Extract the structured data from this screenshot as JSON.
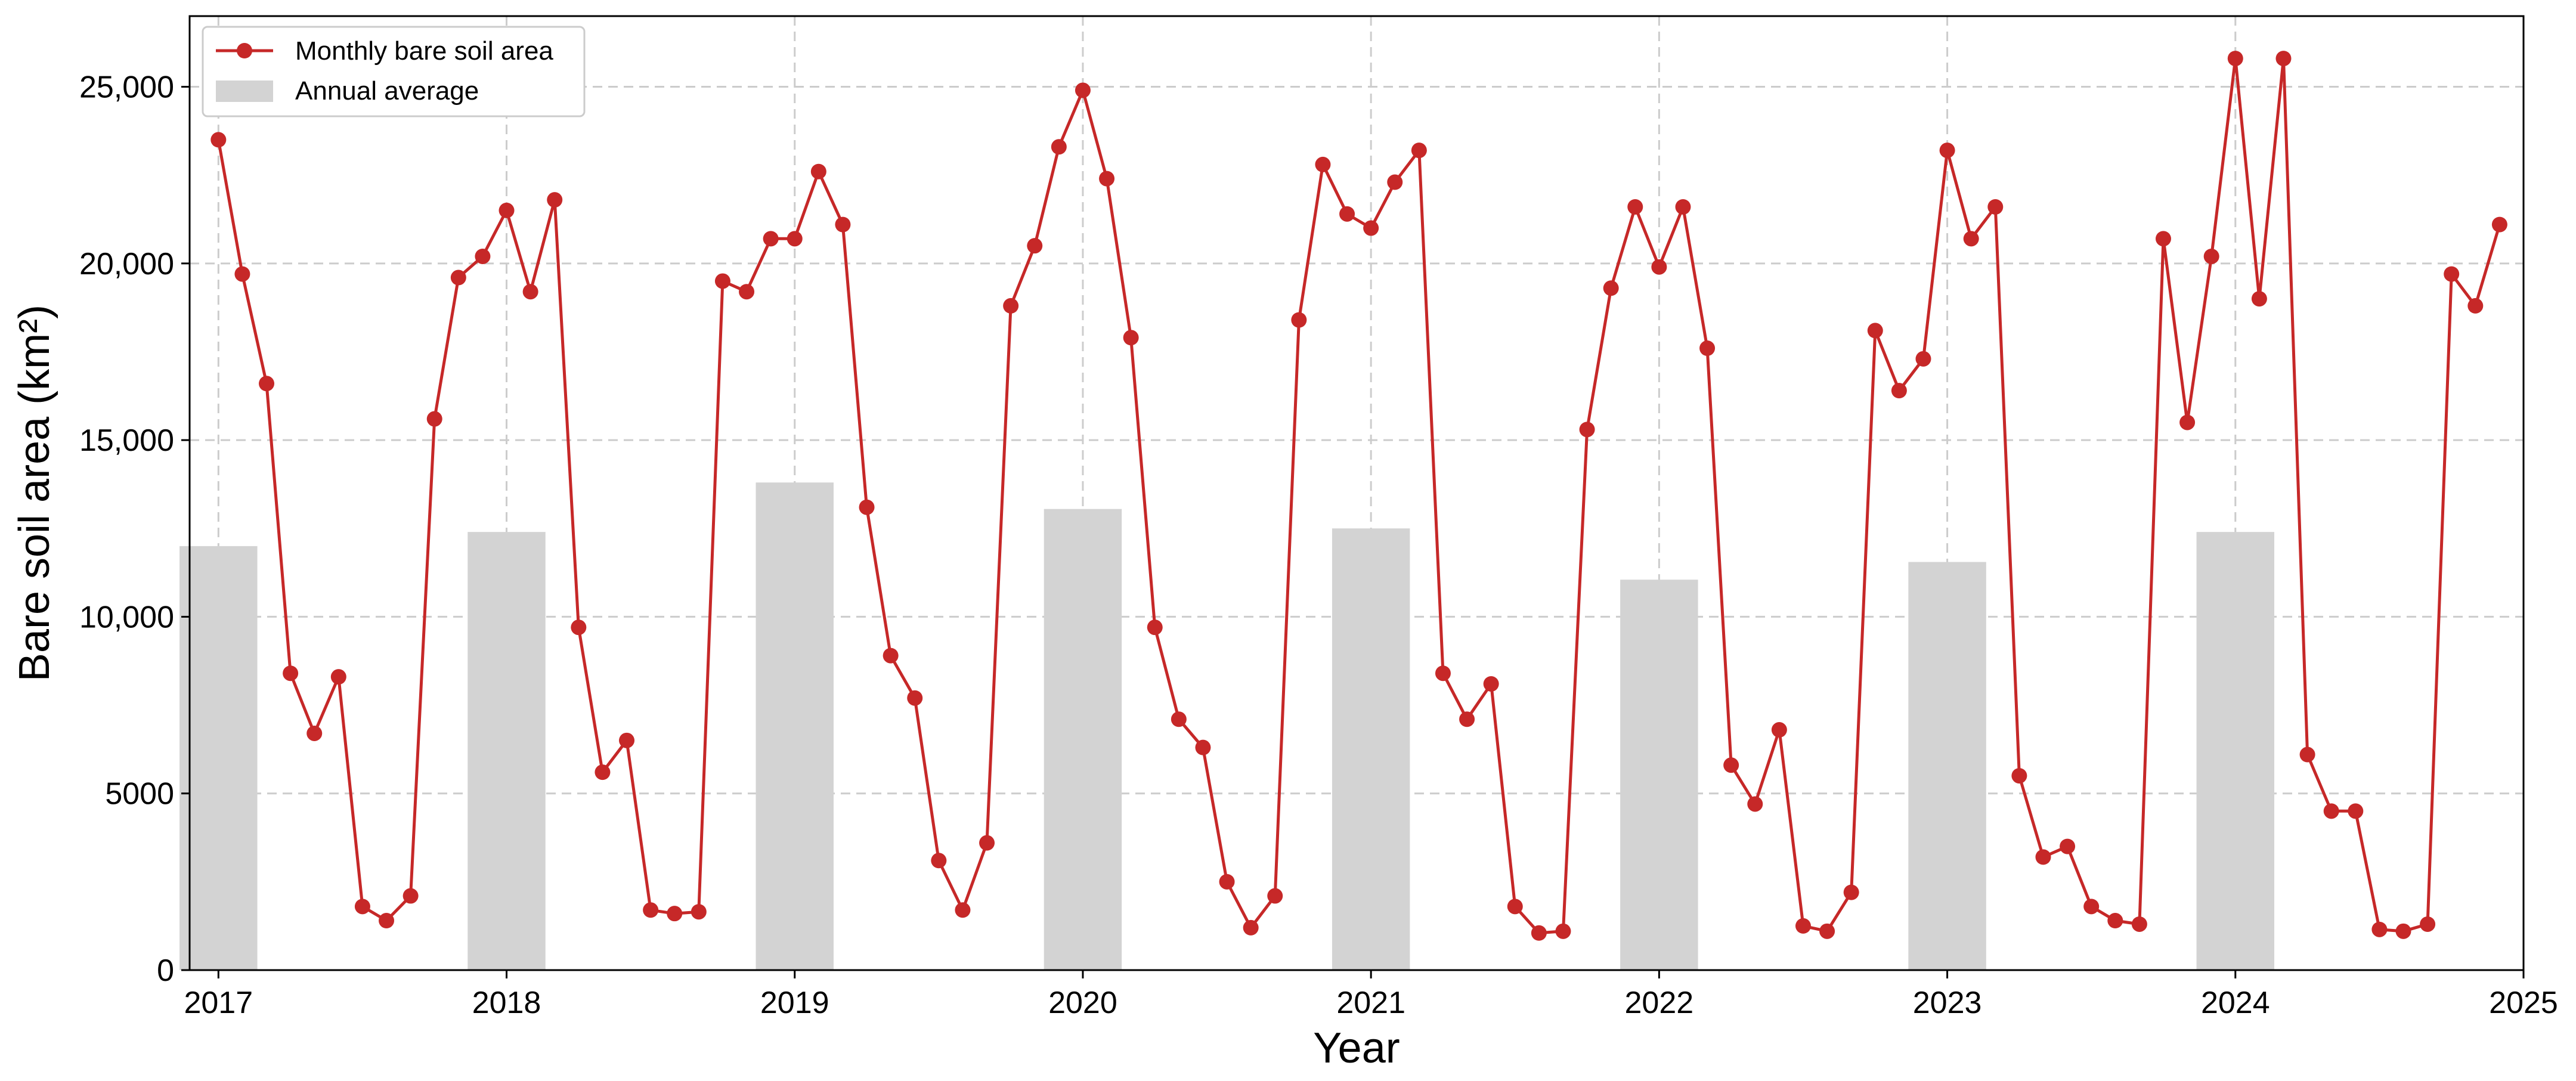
{
  "chart_data": {
    "type": "line",
    "xlabel": "Year",
    "ylabel": "Bare soil area (km²)",
    "xlim": [
      2016.9,
      2025.0
    ],
    "ylim": [
      0,
      27000
    ],
    "grid": true,
    "legend_position": "top-left",
    "x_ticks": [
      2017,
      2018,
      2019,
      2020,
      2021,
      2022,
      2023,
      2024,
      2025
    ],
    "x_tick_labels": [
      "2017",
      "2018",
      "2019",
      "2020",
      "2021",
      "2022",
      "2023",
      "2024",
      "2025"
    ],
    "y_ticks": [
      0,
      5000,
      10000,
      15000,
      20000,
      25000
    ],
    "y_tick_labels": [
      "0",
      "5000",
      "10,000",
      "15,000",
      "20,000",
      "25,000"
    ],
    "series": [
      {
        "name": "Monthly bare soil area",
        "type": "line",
        "color": "#c62828",
        "marker": "circle",
        "x": [
          2017.0,
          2017.083,
          2017.167,
          2017.25,
          2017.333,
          2017.417,
          2017.5,
          2017.583,
          2017.667,
          2017.75,
          2017.833,
          2017.917,
          2018.0,
          2018.083,
          2018.167,
          2018.25,
          2018.333,
          2018.417,
          2018.5,
          2018.583,
          2018.667,
          2018.75,
          2018.833,
          2018.917,
          2019.0,
          2019.083,
          2019.167,
          2019.25,
          2019.333,
          2019.417,
          2019.5,
          2019.583,
          2019.667,
          2019.75,
          2019.833,
          2019.917,
          2020.0,
          2020.083,
          2020.167,
          2020.25,
          2020.333,
          2020.417,
          2020.5,
          2020.583,
          2020.667,
          2020.75,
          2020.833,
          2020.917,
          2021.0,
          2021.083,
          2021.167,
          2021.25,
          2021.333,
          2021.417,
          2021.5,
          2021.583,
          2021.667,
          2021.75,
          2021.833,
          2021.917,
          2022.0,
          2022.083,
          2022.167,
          2022.25,
          2022.333,
          2022.417,
          2022.5,
          2022.583,
          2022.667,
          2022.75,
          2022.833,
          2022.917,
          2023.0,
          2023.083,
          2023.167,
          2023.25,
          2023.333,
          2023.417,
          2023.5,
          2023.583,
          2023.667,
          2023.75,
          2023.833,
          2023.917,
          2024.0,
          2024.083,
          2024.167,
          2024.25,
          2024.333,
          2024.417,
          2024.5,
          2024.583,
          2024.667,
          2024.75,
          2024.833,
          2024.917
        ],
        "values": [
          23500,
          19700,
          16600,
          8400,
          6700,
          8300,
          1800,
          1400,
          2100,
          15600,
          19600,
          20200,
          21500,
          19200,
          21800,
          9700,
          5600,
          6500,
          1700,
          1600,
          1650,
          19500,
          19200,
          20700,
          20700,
          22600,
          21100,
          13100,
          8900,
          7700,
          3100,
          1700,
          3600,
          18800,
          20500,
          23300,
          24900,
          22400,
          17900,
          9700,
          7100,
          6300,
          2500,
          1200,
          2100,
          18400,
          22800,
          21400,
          21000,
          22300,
          23200,
          8400,
          7100,
          8100,
          1800,
          1050,
          1100,
          15300,
          19300,
          21600,
          19900,
          21600,
          17600,
          5800,
          4700,
          6800,
          1250,
          1100,
          2200,
          18100,
          16400,
          17300,
          23200,
          20700,
          21600,
          5500,
          3200,
          3500,
          1800,
          1400,
          1300,
          20700,
          15500,
          20200,
          25800,
          19000,
          25800,
          6100,
          4500,
          4500,
          1150,
          1100,
          1300,
          19700,
          18800,
          21100
        ]
      },
      {
        "name": "Annual average",
        "type": "bar",
        "color": "#d3d3d3",
        "x": [
          2017,
          2018,
          2019,
          2020,
          2021,
          2022,
          2023,
          2024
        ],
        "values": [
          12000,
          12400,
          13800,
          13050,
          12500,
          11050,
          11550,
          12400
        ]
      }
    ]
  }
}
